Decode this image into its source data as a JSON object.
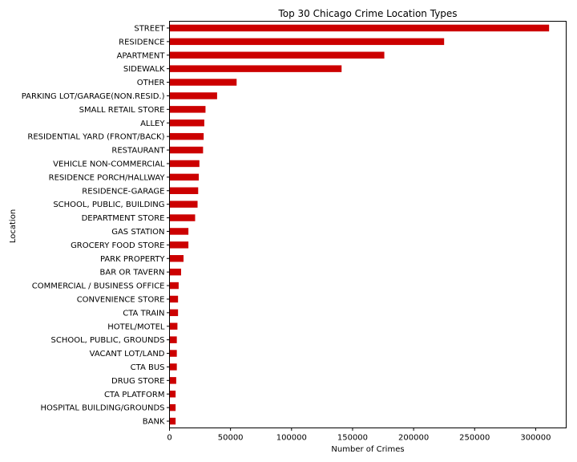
{
  "chart_data": {
    "type": "bar",
    "orientation": "horizontal",
    "title": "Top 30 Chicago Crime Location Types",
    "xlabel": "Number of Crimes",
    "ylabel": "Location",
    "xlim": [
      0,
      325000
    ],
    "xticks": [
      0,
      50000,
      100000,
      150000,
      200000,
      250000,
      300000
    ],
    "grid": false,
    "bar_color": "#cc0000",
    "categories": [
      "STREET",
      "RESIDENCE",
      "APARTMENT",
      "SIDEWALK",
      "OTHER",
      "PARKING LOT/GARAGE(NON.RESID.)",
      "SMALL RETAIL STORE",
      "ALLEY",
      "RESIDENTIAL YARD (FRONT/BACK)",
      "RESTAURANT",
      "VEHICLE NON-COMMERCIAL",
      "RESIDENCE PORCH/HALLWAY",
      "RESIDENCE-GARAGE",
      "SCHOOL, PUBLIC, BUILDING",
      "DEPARTMENT STORE",
      "GAS STATION",
      "GROCERY FOOD STORE",
      "PARK PROPERTY",
      "BAR OR TAVERN",
      "COMMERCIAL / BUSINESS OFFICE",
      "CONVENIENCE STORE",
      "CTA TRAIN",
      "HOTEL/MOTEL",
      "SCHOOL, PUBLIC, GROUNDS",
      "VACANT LOT/LAND",
      "CTA BUS",
      "DRUG STORE",
      "CTA PLATFORM",
      "HOSPITAL BUILDING/GROUNDS",
      "BANK"
    ],
    "values": [
      311000,
      225000,
      176000,
      141000,
      55000,
      39000,
      29500,
      28500,
      28000,
      27500,
      24500,
      24000,
      23500,
      23000,
      21000,
      15500,
      15500,
      11500,
      9500,
      7500,
      7000,
      7000,
      6500,
      6000,
      6000,
      6000,
      5500,
      5000,
      5000,
      5000
    ]
  }
}
